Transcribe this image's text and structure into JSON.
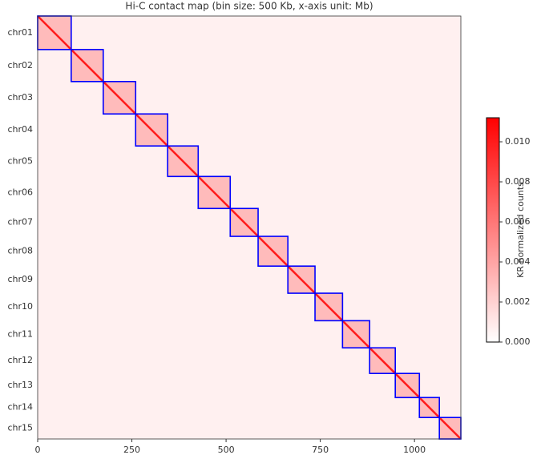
{
  "chart_data": {
    "type": "heatmap",
    "title": "Hi-C contact map (bin size: 500 Kb, x-axis unit: Mb)",
    "chromosomes": [
      {
        "name": "chr01",
        "start": 0,
        "end": 89
      },
      {
        "name": "chr02",
        "start": 89,
        "end": 174
      },
      {
        "name": "chr03",
        "start": 174,
        "end": 260
      },
      {
        "name": "chr04",
        "start": 260,
        "end": 345
      },
      {
        "name": "chr05",
        "start": 345,
        "end": 426
      },
      {
        "name": "chr06",
        "start": 426,
        "end": 511
      },
      {
        "name": "chr07",
        "start": 511,
        "end": 585
      },
      {
        "name": "chr08",
        "start": 585,
        "end": 664
      },
      {
        "name": "chr09",
        "start": 664,
        "end": 736
      },
      {
        "name": "chr10",
        "start": 736,
        "end": 809
      },
      {
        "name": "chr11",
        "start": 809,
        "end": 881
      },
      {
        "name": "chr12",
        "start": 881,
        "end": 949
      },
      {
        "name": "chr13",
        "start": 949,
        "end": 1013
      },
      {
        "name": "chr14",
        "start": 1013,
        "end": 1066
      },
      {
        "name": "chr15",
        "start": 1066,
        "end": 1123
      }
    ],
    "box_color": "#0000ff",
    "xlim": [
      0,
      1123
    ],
    "xticks": [
      0,
      250,
      500,
      750,
      1000
    ],
    "colorbar": {
      "label": "KR normalized counts",
      "colors": [
        "#ffffff",
        "#ff0000"
      ],
      "ylim": [
        0,
        0.0112
      ],
      "yticks": [
        {
          "value": 0,
          "label": "0.000"
        },
        {
          "value": 0.002,
          "label": "0.002"
        },
        {
          "value": 0.004,
          "label": "0.004"
        },
        {
          "value": 0.006,
          "label": "0.006"
        },
        {
          "value": 0.008,
          "label": "0.008"
        },
        {
          "value": 0.01,
          "label": "0.010"
        }
      ]
    }
  }
}
